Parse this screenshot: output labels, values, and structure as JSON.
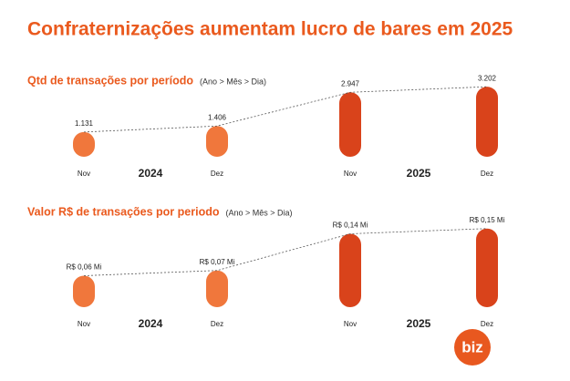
{
  "header": {
    "title": "Confraternizações aumentam lucro de bares em 2025",
    "logo": "biz"
  },
  "chart_data": [
    {
      "type": "bar",
      "title": "Qtd de transações por período",
      "subtitle": "(Ano > Mês > Dia)",
      "categories": [
        "Nov",
        "Dez",
        "Nov",
        "Dez"
      ],
      "groups": [
        "2024",
        "2025"
      ],
      "values": [
        1131,
        1406,
        2947,
        3202
      ],
      "value_labels": [
        "1.131",
        "1.406",
        "2.947",
        "3.202"
      ],
      "colors": [
        "#f0773c",
        "#f0773c",
        "#d9431b",
        "#d9431b"
      ],
      "ylim": [
        0,
        3500
      ]
    },
    {
      "type": "bar",
      "title": "Valor R$ de transações por periodo",
      "subtitle": "(Ano > Mês > Dia)",
      "categories": [
        "Nov",
        "Dez",
        "Nov",
        "Dez"
      ],
      "groups": [
        "2024",
        "2025"
      ],
      "values": [
        0.06,
        0.07,
        0.14,
        0.15
      ],
      "value_labels": [
        "R$ 0,06 Mi",
        "R$ 0,07 Mi",
        "R$ 0,14 Mi",
        "R$ 0,15 Mi"
      ],
      "colors": [
        "#f0773c",
        "#f0773c",
        "#d9431b",
        "#d9431b"
      ],
      "ylim": [
        0,
        0.16
      ]
    }
  ]
}
